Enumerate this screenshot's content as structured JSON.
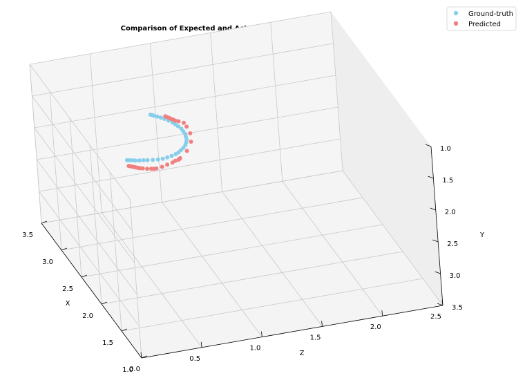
{
  "chart_data": {
    "type": "scatter",
    "projection": "3d",
    "title": "Comparison of Expected and Actual End EffectorPosition",
    "xlabel": "X",
    "ylabel": "Y",
    "zlabel": "Z",
    "xlim": [
      1.0,
      3.5
    ],
    "ylim": [
      1.0,
      3.5
    ],
    "zlim": [
      0.0,
      2.5
    ],
    "x_ticks": [
      "1.0",
      "1.5",
      "2.0",
      "2.5",
      "3.0",
      "3.5"
    ],
    "y_ticks": [
      "1.0",
      "1.5",
      "2.0",
      "2.5",
      "3.0",
      "3.5"
    ],
    "z_ticks": [
      "0.0",
      "0.5",
      "1.0",
      "1.5",
      "2.0",
      "2.5"
    ],
    "grid": true,
    "legend": "top-right",
    "series": [
      {
        "name": "Ground-truth",
        "color": "#87ceeb",
        "points": [
          [
            2.62,
            1.92,
            0.48
          ],
          [
            2.61,
            1.92,
            0.5
          ],
          [
            2.6,
            1.92,
            0.52
          ],
          [
            2.59,
            1.92,
            0.54
          ],
          [
            2.58,
            1.92,
            0.57
          ],
          [
            2.57,
            1.92,
            0.6
          ],
          [
            2.56,
            1.92,
            0.63
          ],
          [
            2.55,
            1.92,
            0.67
          ],
          [
            2.54,
            1.92,
            0.71
          ],
          [
            2.54,
            1.92,
            0.75
          ],
          [
            2.55,
            1.92,
            0.79
          ],
          [
            2.56,
            1.92,
            0.83
          ],
          [
            2.58,
            1.92,
            0.87
          ],
          [
            2.6,
            1.92,
            0.9
          ],
          [
            2.63,
            1.92,
            0.93
          ],
          [
            2.66,
            1.92,
            0.96
          ],
          [
            2.7,
            1.92,
            0.99
          ],
          [
            2.74,
            1.92,
            1.01
          ],
          [
            2.79,
            1.92,
            1.03
          ],
          [
            2.84,
            1.92,
            1.04
          ],
          [
            2.88,
            1.92,
            1.05
          ],
          [
            2.93,
            1.92,
            1.05
          ],
          [
            2.98,
            1.92,
            1.05
          ],
          [
            3.03,
            1.92,
            1.04
          ],
          [
            3.07,
            1.92,
            1.03
          ],
          [
            3.11,
            1.92,
            1.02
          ],
          [
            3.15,
            1.92,
            1.0
          ],
          [
            3.19,
            1.92,
            0.98
          ],
          [
            3.22,
            1.92,
            0.96
          ],
          [
            3.25,
            1.92,
            0.94
          ],
          [
            3.27,
            1.92,
            0.92
          ],
          [
            3.29,
            1.92,
            0.91
          ],
          [
            3.3,
            1.92,
            0.9
          ]
        ]
      },
      {
        "name": "Predicted",
        "color": "#f08080",
        "points": [
          [
            2.52,
            1.92,
            0.46
          ],
          [
            2.51,
            1.92,
            0.47
          ],
          [
            2.5,
            1.92,
            0.48
          ],
          [
            2.49,
            1.92,
            0.49
          ],
          [
            2.48,
            1.92,
            0.5
          ],
          [
            2.47,
            1.92,
            0.51
          ],
          [
            2.46,
            1.92,
            0.52
          ],
          [
            2.45,
            1.92,
            0.53
          ],
          [
            2.44,
            1.92,
            0.55
          ],
          [
            2.42,
            1.92,
            0.58
          ],
          [
            2.41,
            1.92,
            0.61
          ],
          [
            2.4,
            1.92,
            0.63
          ],
          [
            2.4,
            1.92,
            0.65
          ],
          [
            2.41,
            1.92,
            0.7
          ],
          [
            2.43,
            1.92,
            0.75
          ],
          [
            2.45,
            1.92,
            0.8
          ],
          [
            2.47,
            1.92,
            0.83
          ],
          [
            2.48,
            1.92,
            0.86
          ],
          [
            2.49,
            1.92,
            0.87
          ],
          [
            2.5,
            1.92,
            0.88
          ],
          [
            2.6,
            1.92,
            0.97
          ],
          [
            2.74,
            1.92,
            1.05
          ],
          [
            2.88,
            1.92,
            1.09
          ],
          [
            3.0,
            1.92,
            1.1
          ],
          [
            3.07,
            1.92,
            1.1
          ],
          [
            3.11,
            1.92,
            1.07
          ],
          [
            3.13,
            1.92,
            1.05
          ],
          [
            3.15,
            1.92,
            1.04
          ],
          [
            3.17,
            1.92,
            1.03
          ],
          [
            3.19,
            1.92,
            1.02
          ],
          [
            3.21,
            1.92,
            1.01
          ],
          [
            3.23,
            1.92,
            1.0
          ]
        ]
      }
    ]
  }
}
